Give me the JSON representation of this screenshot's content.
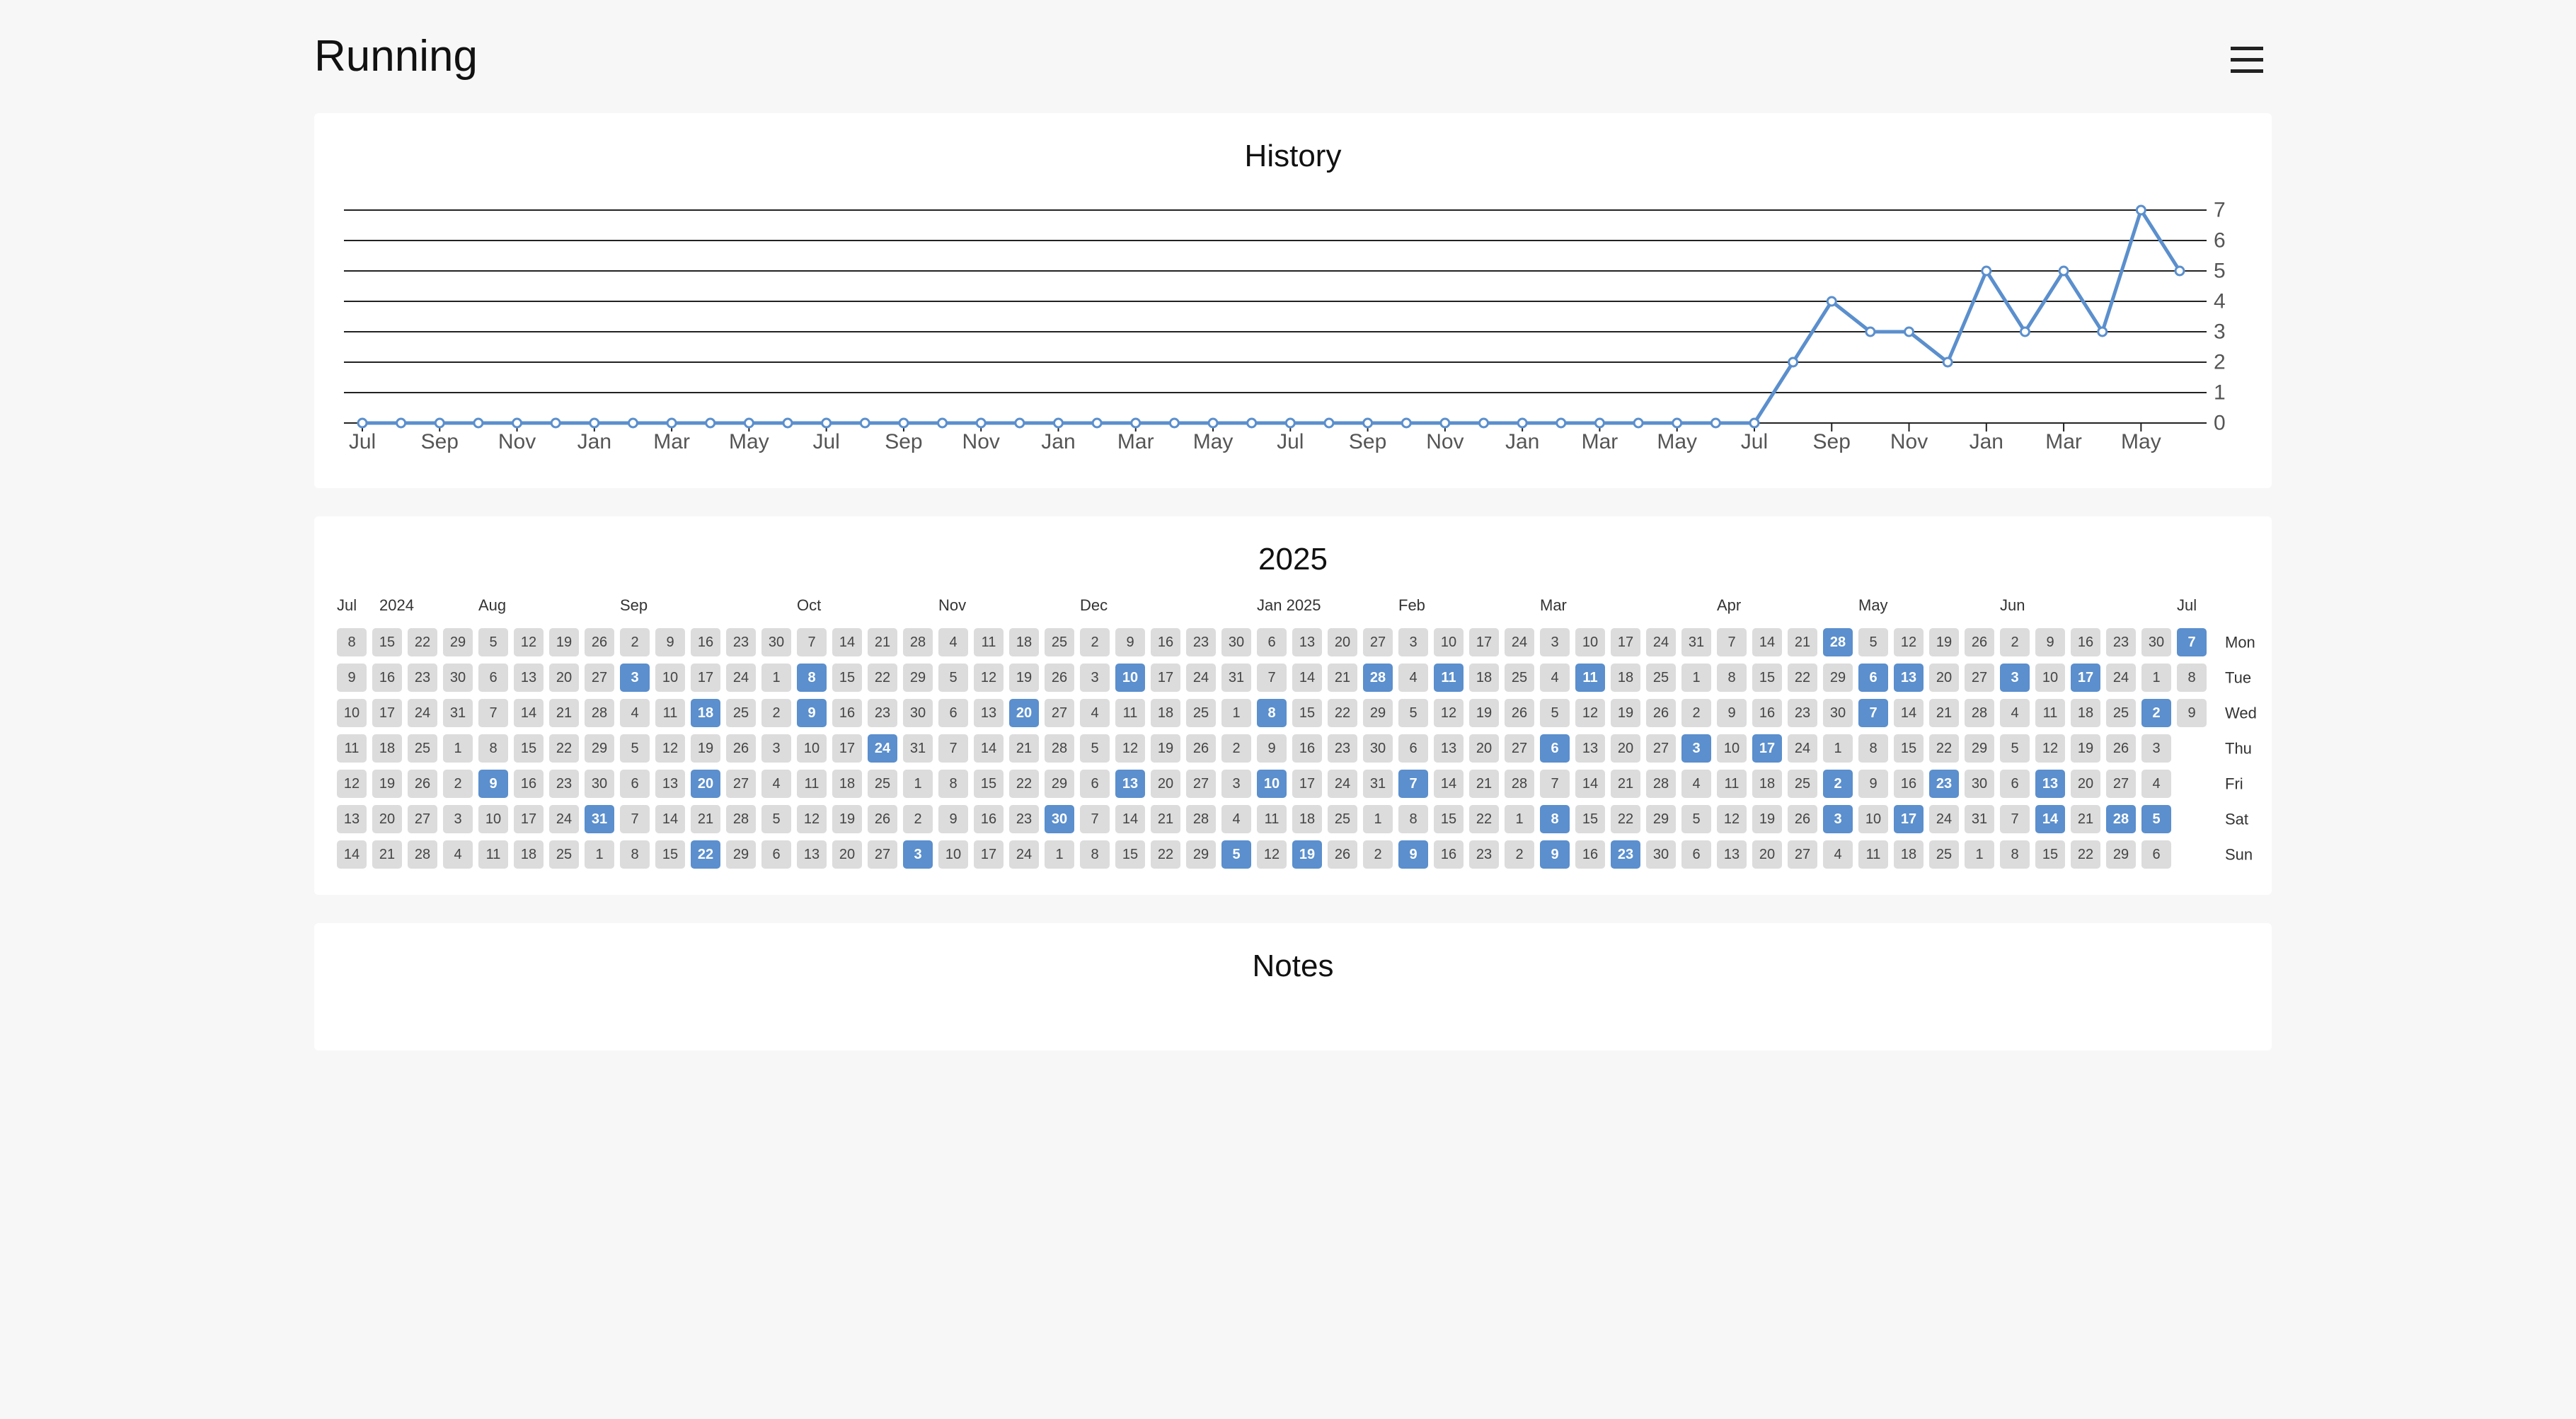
{
  "header": {
    "title": "Running",
    "menu_icon": "hamburger-menu-icon"
  },
  "history": {
    "title": "History",
    "chart_data": {
      "type": "line",
      "title": "History",
      "ylim": [
        0,
        7
      ],
      "yticks": [
        0,
        1,
        2,
        3,
        4,
        5,
        6,
        7
      ],
      "x_tick_labels": [
        "Jul",
        "Sep",
        "Nov",
        "Jan",
        "Mar",
        "May",
        "Jul",
        "Sep",
        "Nov",
        "Jan",
        "Mar",
        "May",
        "Jul",
        "Sep",
        "Nov",
        "Jan",
        "Mar",
        "May",
        "Jul",
        "Sep",
        "Nov",
        "Jan",
        "Mar",
        "May"
      ],
      "grid": true,
      "line_color": "#5b8fcd",
      "series": [
        {
          "values": [
            0,
            0,
            0,
            0,
            0,
            0,
            0,
            0,
            0,
            0,
            0,
            0,
            0,
            0,
            0,
            0,
            0,
            0,
            0,
            0,
            0,
            0,
            0,
            0,
            0,
            0,
            0,
            0,
            0,
            0,
            0,
            0,
            0,
            0,
            0,
            0,
            0,
            2,
            4,
            3,
            3,
            2,
            5,
            3,
            5,
            3,
            7,
            5
          ]
        }
      ]
    }
  },
  "calendar": {
    "title": "2025",
    "month_labels": [
      {
        "col": 0,
        "text": "Jul"
      },
      {
        "col": 1,
        "text": "2024"
      },
      {
        "col": 4,
        "text": "Aug"
      },
      {
        "col": 8,
        "text": "Sep"
      },
      {
        "col": 13,
        "text": "Oct"
      },
      {
        "col": 17,
        "text": "Nov"
      },
      {
        "col": 21,
        "text": "Dec"
      },
      {
        "col": 26,
        "text": "Jan 2025"
      },
      {
        "col": 30,
        "text": "Feb"
      },
      {
        "col": 34,
        "text": "Mar"
      },
      {
        "col": 39,
        "text": "Apr"
      },
      {
        "col": 43,
        "text": "May"
      },
      {
        "col": 47,
        "text": "Jun"
      },
      {
        "col": 52,
        "text": "Jul"
      }
    ],
    "weekday_labels": [
      "Mon",
      "Tue",
      "Wed",
      "Thu",
      "Fri",
      "Sat",
      "Sun"
    ],
    "start_mondays": [
      [
        2024,
        7,
        8
      ],
      [
        2024,
        7,
        15
      ],
      [
        2024,
        7,
        22
      ],
      [
        2024,
        7,
        29
      ],
      [
        2024,
        8,
        5
      ],
      [
        2024,
        8,
        12
      ],
      [
        2024,
        8,
        19
      ],
      [
        2024,
        8,
        26
      ],
      [
        2024,
        9,
        2
      ],
      [
        2024,
        9,
        9
      ],
      [
        2024,
        9,
        16
      ],
      [
        2024,
        9,
        23
      ],
      [
        2024,
        9,
        30
      ],
      [
        2024,
        10,
        7
      ],
      [
        2024,
        10,
        14
      ],
      [
        2024,
        10,
        21
      ],
      [
        2024,
        10,
        28
      ],
      [
        2024,
        11,
        4
      ],
      [
        2024,
        11,
        11
      ],
      [
        2024,
        11,
        18
      ],
      [
        2024,
        11,
        25
      ],
      [
        2024,
        12,
        2
      ],
      [
        2024,
        12,
        9
      ],
      [
        2024,
        12,
        16
      ],
      [
        2024,
        12,
        23
      ],
      [
        2024,
        12,
        30
      ],
      [
        2025,
        1,
        6
      ],
      [
        2025,
        1,
        13
      ],
      [
        2025,
        1,
        20
      ],
      [
        2025,
        1,
        27
      ],
      [
        2025,
        2,
        3
      ],
      [
        2025,
        2,
        10
      ],
      [
        2025,
        2,
        17
      ],
      [
        2025,
        2,
        24
      ],
      [
        2025,
        3,
        3
      ],
      [
        2025,
        3,
        10
      ],
      [
        2025,
        3,
        17
      ],
      [
        2025,
        3,
        24
      ],
      [
        2025,
        3,
        31
      ],
      [
        2025,
        4,
        7
      ],
      [
        2025,
        4,
        14
      ],
      [
        2025,
        4,
        21
      ],
      [
        2025,
        4,
        28
      ],
      [
        2025,
        5,
        5
      ],
      [
        2025,
        5,
        12
      ],
      [
        2025,
        5,
        19
      ],
      [
        2025,
        5,
        26
      ],
      [
        2025,
        6,
        2
      ],
      [
        2025,
        6,
        9
      ],
      [
        2025,
        6,
        16
      ],
      [
        2025,
        6,
        23
      ],
      [
        2025,
        6,
        30
      ],
      [
        2025,
        7,
        7
      ]
    ],
    "days": [],
    "active_dates": [
      "2024-08-09",
      "2024-08-31",
      "2024-09-03",
      "2024-09-18",
      "2024-09-20",
      "2024-09-22",
      "2024-10-08",
      "2024-10-09",
      "2024-10-24",
      "2024-11-03",
      "2024-11-20",
      "2024-11-30",
      "2024-12-10",
      "2024-12-13",
      "2025-01-05",
      "2025-01-08",
      "2025-01-10",
      "2025-01-19",
      "2025-01-28",
      "2025-02-07",
      "2025-02-09",
      "2025-02-11",
      "2025-03-06",
      "2025-03-08",
      "2025-03-09",
      "2025-03-11",
      "2025-03-23",
      "2025-04-03",
      "2025-04-17",
      "2025-04-28",
      "2025-05-02",
      "2025-05-03",
      "2025-05-06",
      "2025-05-07",
      "2025-05-13",
      "2025-05-17",
      "2025-05-23",
      "2025-06-03",
      "2025-06-13",
      "2025-06-14",
      "2025-06-17",
      "2025-06-28",
      "2025-07-02",
      "2025-07-05",
      "2025-07-07"
    ],
    "active_color": "#5b8fcd",
    "inactive_color": "#dcdcdc"
  },
  "notes": {
    "title": "Notes"
  }
}
